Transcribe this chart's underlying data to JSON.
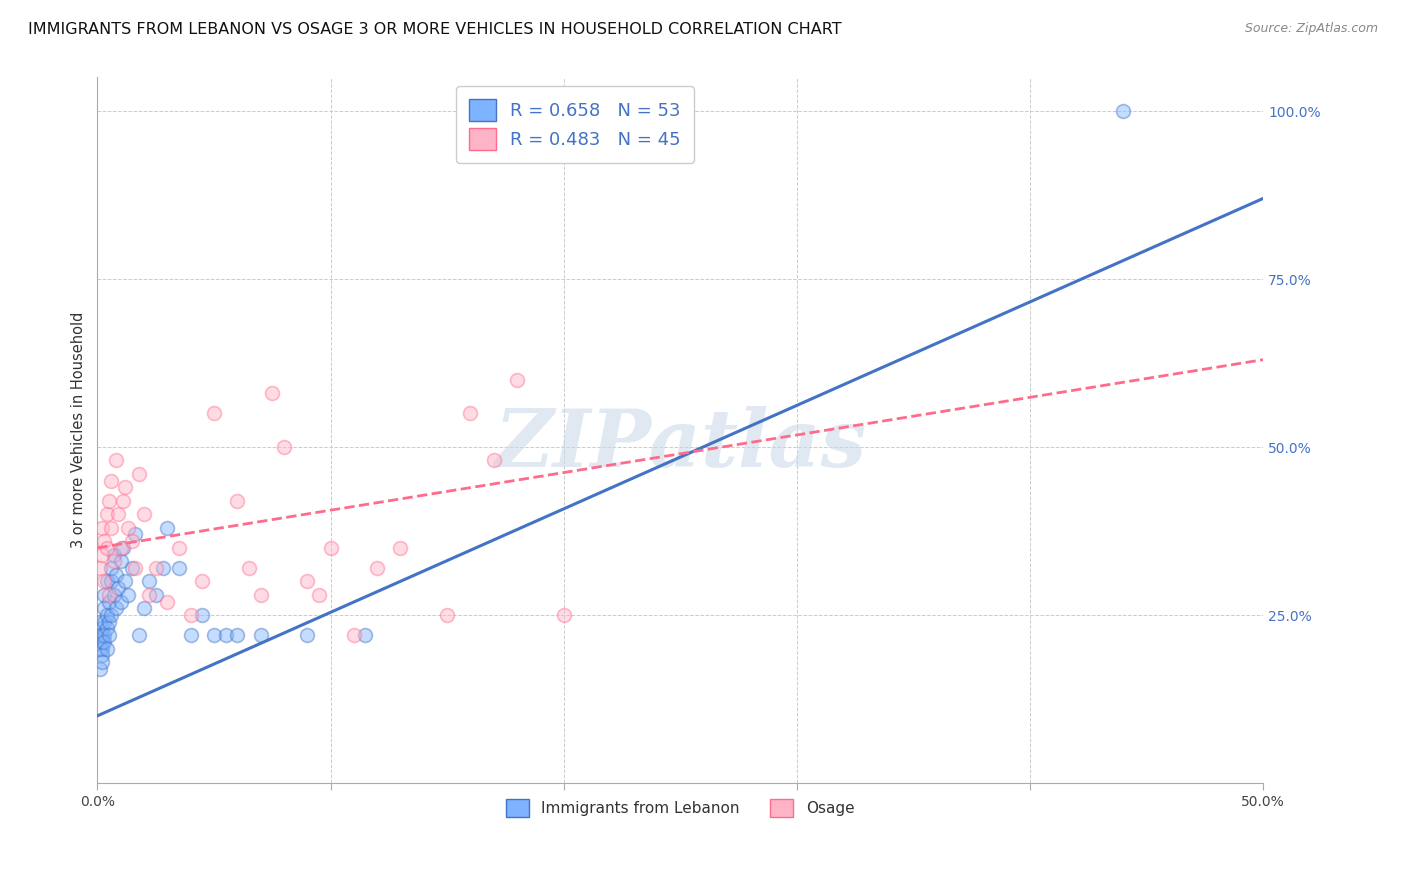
{
  "title": "IMMIGRANTS FROM LEBANON VS OSAGE 3 OR MORE VEHICLES IN HOUSEHOLD CORRELATION CHART",
  "source": "Source: ZipAtlas.com",
  "ylabel": "3 or more Vehicles in Household",
  "legend_label_1": "Immigrants from Lebanon",
  "legend_label_2": "Osage",
  "R1": 0.658,
  "N1": 53,
  "R2": 0.483,
  "N2": 45,
  "color_blue": "#7EB3FF",
  "color_pink": "#FFB3C6",
  "trend_blue": "#4472C4",
  "trend_pink": "#FF6B8A",
  "background": "#FFFFFF",
  "xlim": [
    0,
    0.5
  ],
  "ylim": [
    0,
    1.05
  ],
  "y_ticks_right": [
    0.0,
    0.25,
    0.5,
    0.75,
    1.0
  ],
  "y_tick_labels_right": [
    "",
    "25.0%",
    "50.0%",
    "75.0%",
    "100.0%"
  ],
  "blue_scatter_x": [
    0.001,
    0.001,
    0.001,
    0.001,
    0.002,
    0.002,
    0.002,
    0.002,
    0.002,
    0.002,
    0.003,
    0.003,
    0.003,
    0.003,
    0.003,
    0.004,
    0.004,
    0.004,
    0.004,
    0.005,
    0.005,
    0.005,
    0.006,
    0.006,
    0.006,
    0.007,
    0.007,
    0.008,
    0.008,
    0.009,
    0.01,
    0.01,
    0.011,
    0.012,
    0.013,
    0.015,
    0.016,
    0.018,
    0.02,
    0.022,
    0.025,
    0.028,
    0.03,
    0.035,
    0.04,
    0.045,
    0.05,
    0.055,
    0.06,
    0.07,
    0.09,
    0.115,
    0.44
  ],
  "blue_scatter_y": [
    0.2,
    0.22,
    0.24,
    0.17,
    0.2,
    0.21,
    0.23,
    0.22,
    0.19,
    0.18,
    0.22,
    0.24,
    0.26,
    0.28,
    0.21,
    0.25,
    0.23,
    0.3,
    0.2,
    0.27,
    0.24,
    0.22,
    0.3,
    0.32,
    0.25,
    0.28,
    0.34,
    0.26,
    0.31,
    0.29,
    0.33,
    0.27,
    0.35,
    0.3,
    0.28,
    0.32,
    0.37,
    0.22,
    0.26,
    0.3,
    0.28,
    0.32,
    0.38,
    0.32,
    0.22,
    0.25,
    0.22,
    0.22,
    0.22,
    0.22,
    0.22,
    0.22,
    1.0
  ],
  "pink_scatter_x": [
    0.001,
    0.002,
    0.002,
    0.003,
    0.003,
    0.004,
    0.004,
    0.005,
    0.005,
    0.006,
    0.006,
    0.007,
    0.008,
    0.009,
    0.01,
    0.011,
    0.012,
    0.013,
    0.015,
    0.016,
    0.018,
    0.02,
    0.022,
    0.025,
    0.03,
    0.035,
    0.04,
    0.045,
    0.05,
    0.06,
    0.065,
    0.07,
    0.075,
    0.08,
    0.09,
    0.095,
    0.1,
    0.11,
    0.12,
    0.13,
    0.15,
    0.16,
    0.17,
    0.18,
    0.2
  ],
  "pink_scatter_y": [
    0.32,
    0.38,
    0.34,
    0.3,
    0.36,
    0.4,
    0.35,
    0.42,
    0.28,
    0.45,
    0.38,
    0.33,
    0.48,
    0.4,
    0.35,
    0.42,
    0.44,
    0.38,
    0.36,
    0.32,
    0.46,
    0.4,
    0.28,
    0.32,
    0.27,
    0.35,
    0.25,
    0.3,
    0.55,
    0.42,
    0.32,
    0.28,
    0.58,
    0.5,
    0.3,
    0.28,
    0.35,
    0.22,
    0.32,
    0.35,
    0.25,
    0.55,
    0.48,
    0.6,
    0.25
  ],
  "blue_line_x": [
    0.0,
    0.5
  ],
  "blue_line_y": [
    0.1,
    0.87
  ],
  "pink_line_x": [
    0.0,
    0.5
  ],
  "pink_line_y": [
    0.35,
    0.63
  ],
  "watermark": "ZIPatlas",
  "title_fontsize": 11.5,
  "tick_fontsize": 10,
  "dot_size": 100,
  "dot_alpha": 0.45,
  "dot_linewidth": 1.2
}
